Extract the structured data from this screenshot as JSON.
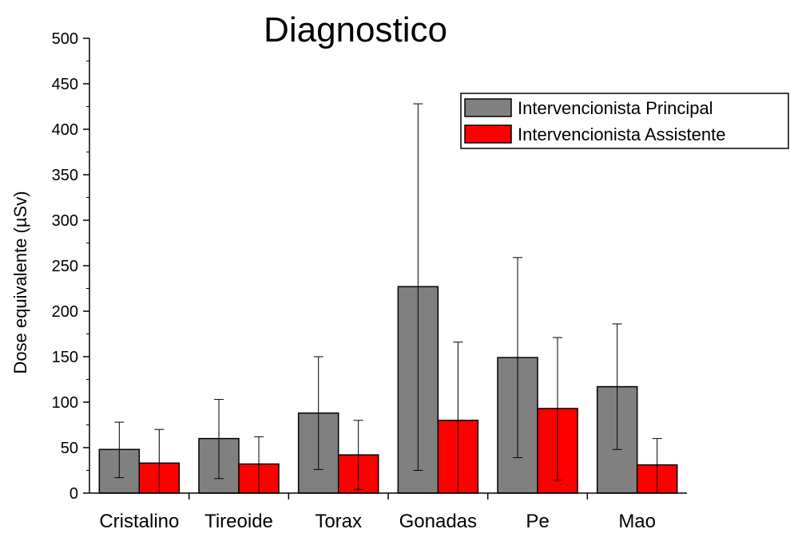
{
  "chart_data": {
    "type": "bar",
    "title": "Diagnostico",
    "ylabel": "Dose equivalente (µSv)",
    "xlabel": "",
    "ylim": [
      0,
      500
    ],
    "yticks": [
      0,
      50,
      100,
      150,
      200,
      250,
      300,
      350,
      400,
      450,
      500
    ],
    "categories": [
      "Cristalino",
      "Tireoide",
      "Torax",
      "Gonadas",
      "Pe",
      "Mao"
    ],
    "series": [
      {
        "name": "Intervencionista Principal",
        "color": "#808080",
        "values": [
          48,
          60,
          88,
          227,
          149,
          117
        ],
        "error_low": [
          17,
          16,
          26,
          25,
          39,
          48
        ],
        "error_high": [
          78,
          103,
          150,
          428,
          259,
          186
        ]
      },
      {
        "name": "Intervencionista Assistente",
        "color": "#ff0000",
        "values": [
          33,
          32,
          42,
          80,
          93,
          31
        ],
        "error_low": [
          0,
          0,
          4,
          0,
          14,
          0
        ],
        "error_high": [
          70,
          62,
          80,
          166,
          171,
          60
        ]
      }
    ],
    "legend_position": "top-right",
    "grid": false
  }
}
